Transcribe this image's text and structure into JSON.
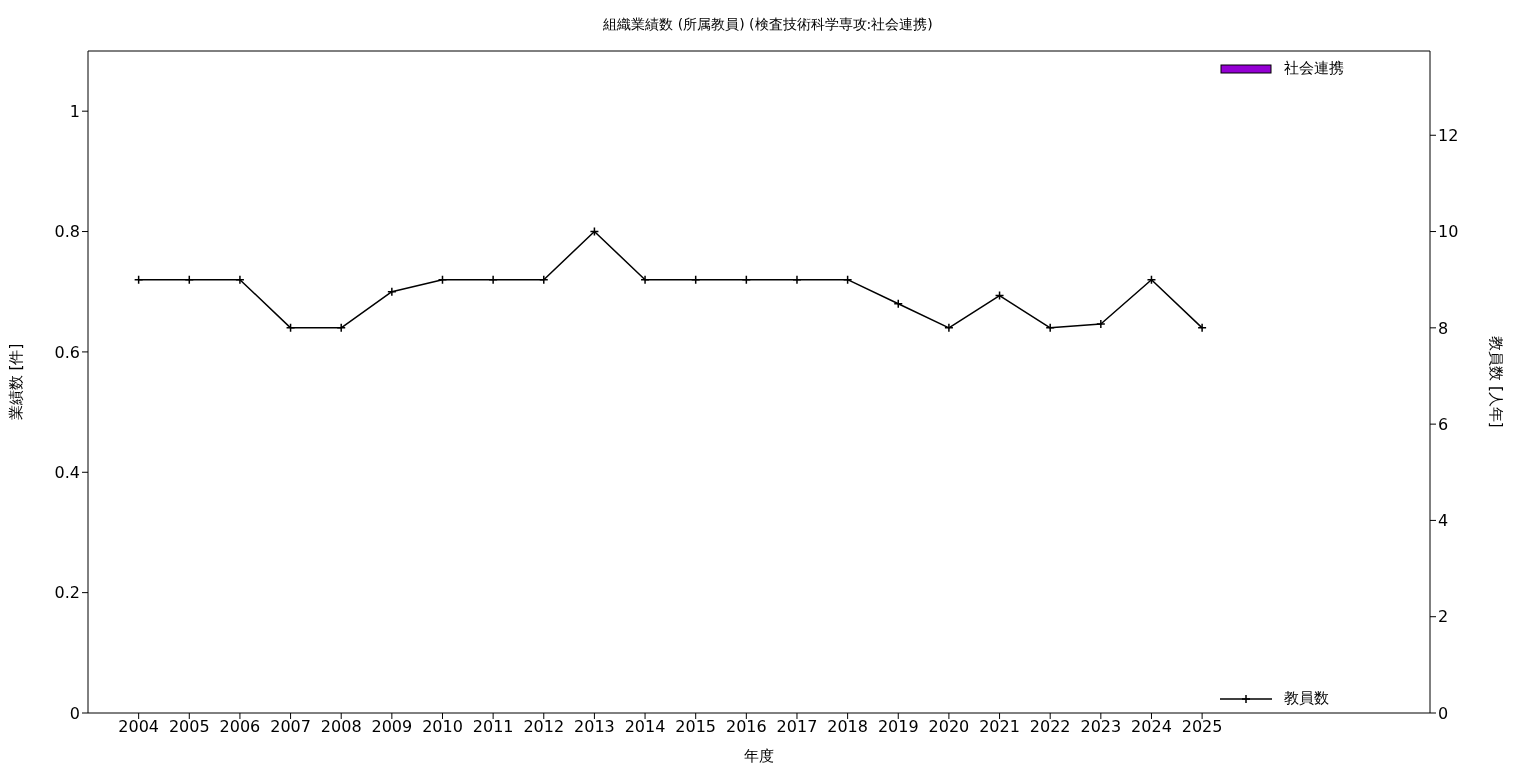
{
  "chart_data": {
    "type": "bar",
    "title": "組織業績数 (所属教員) (検査技術科学専攻:社会連携)",
    "xlabel": "年度",
    "ylabel": "業績数 [件]",
    "y2label": "教員数 [人年]",
    "x": [
      2004,
      2005,
      2006,
      2007,
      2008,
      2009,
      2010,
      2011,
      2012,
      2013,
      2014,
      2015,
      2016,
      2017,
      2018,
      2019,
      2020,
      2021,
      2022,
      2023,
      2024,
      2025
    ],
    "xlim": [
      2003,
      2029.5
    ],
    "xticks": [
      2004,
      2005,
      2006,
      2007,
      2008,
      2009,
      2010,
      2011,
      2012,
      2013,
      2014,
      2015,
      2016,
      2017,
      2018,
      2019,
      2020,
      2021,
      2022,
      2023,
      2024,
      2025
    ],
    "ylim": [
      0,
      1.1
    ],
    "yticks": [
      0,
      0.2,
      0.4,
      0.6,
      0.8,
      1
    ],
    "y2lim": [
      0,
      13.75
    ],
    "y2ticks": [
      0,
      2,
      4,
      6,
      8,
      10,
      12
    ],
    "series": [
      {
        "name": "社会連携",
        "color": "#9400d3",
        "values": [
          0,
          0,
          0,
          0,
          0,
          0,
          0,
          0,
          0,
          0,
          0,
          0,
          0,
          0,
          0,
          0,
          0,
          0,
          0,
          0,
          0,
          0
        ]
      },
      {
        "name": "教員数",
        "type": "line",
        "axis": "y2",
        "color": "#000000",
        "values": [
          9,
          9,
          9,
          8,
          8,
          8.75,
          9,
          9,
          9,
          10,
          9,
          9,
          9,
          9,
          9,
          8.5,
          8,
          8.67,
          8,
          8.08,
          9,
          8
        ]
      }
    ],
    "legend": "right",
    "marker": "cross",
    "line_style": "solid"
  }
}
